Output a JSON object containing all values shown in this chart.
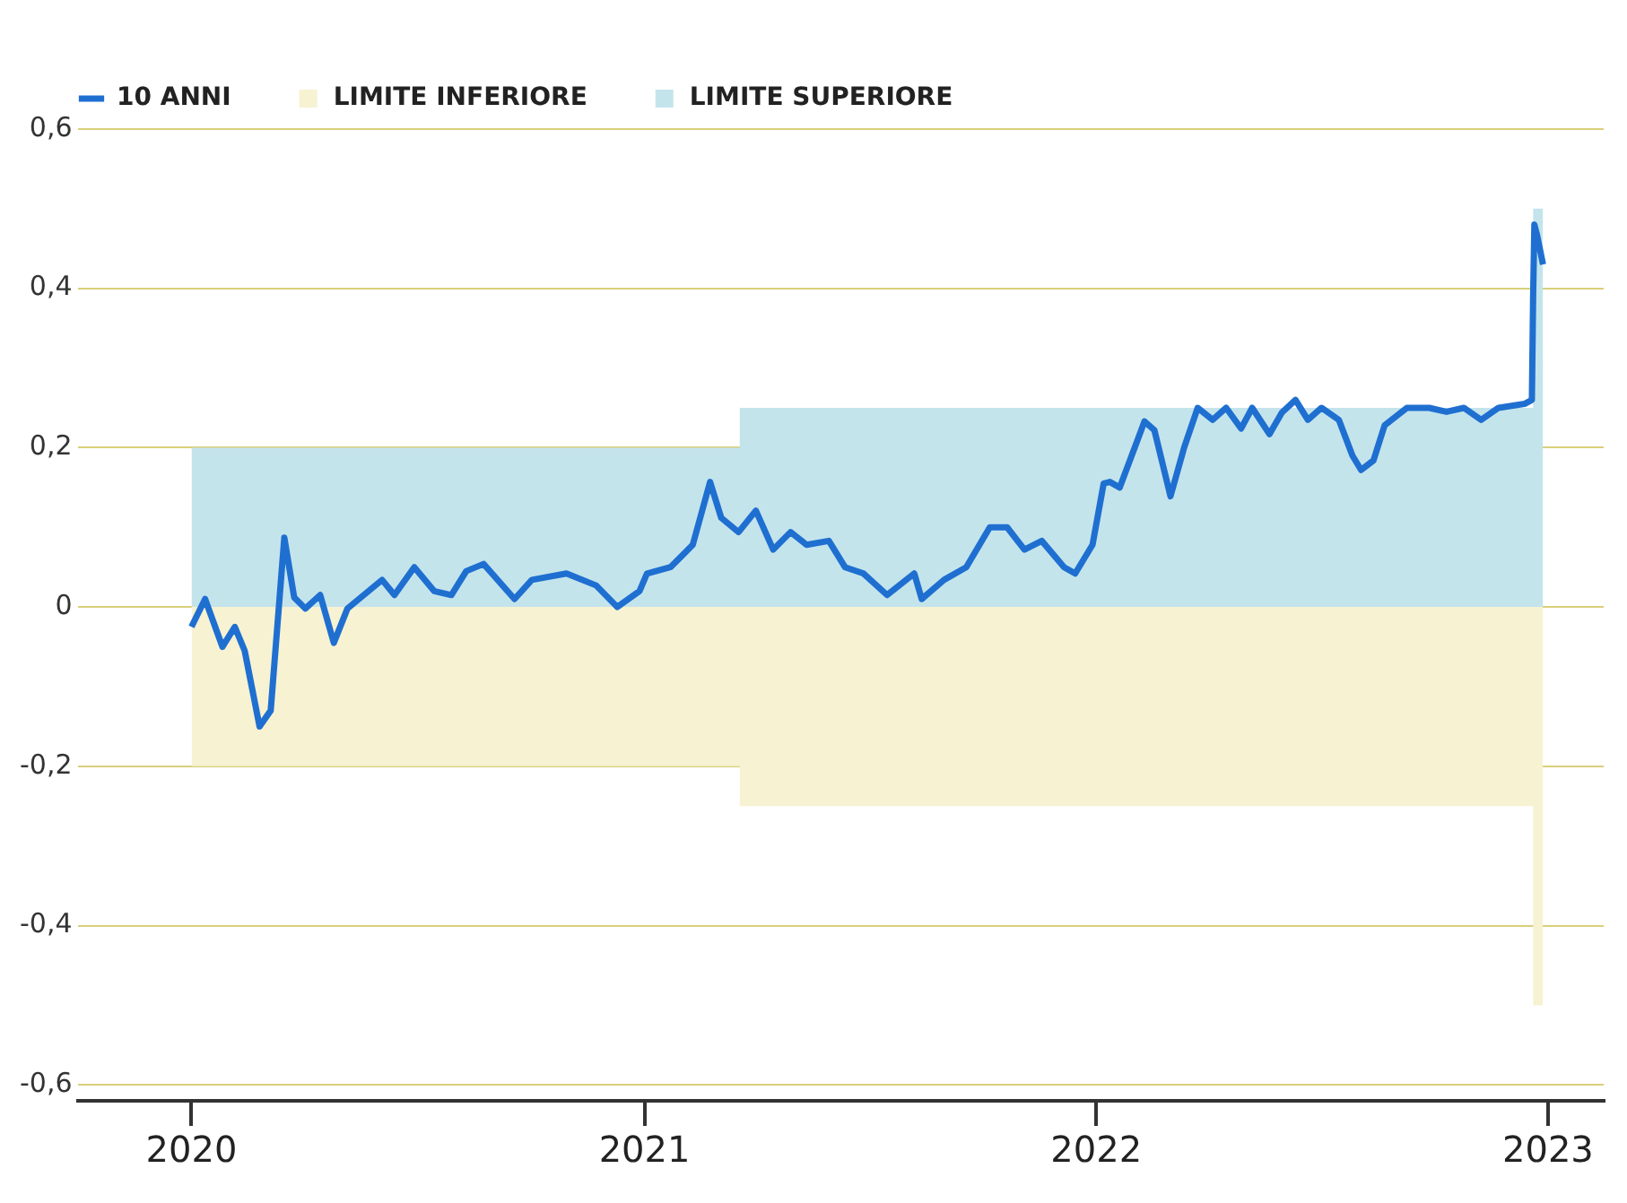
{
  "chart_data": {
    "type": "line",
    "xlim": [
      "2019-10-01",
      "2023-02-15"
    ],
    "xticks": [
      "2020",
      "2021",
      "2022",
      "2023"
    ],
    "ylim": [
      -0.62,
      0.6
    ],
    "yticks": [
      {
        "value": 0.6,
        "label": "0,6"
      },
      {
        "value": 0.4,
        "label": "0,4"
      },
      {
        "value": 0.2,
        "label": "0,2"
      },
      0,
      {
        "value": -0.2,
        "label": "-0,2"
      },
      {
        "value": -0.4,
        "label": "-0,4"
      },
      {
        "value": -0.6,
        "label": "-0,6"
      }
    ],
    "grid": "y",
    "legend": "top left",
    "series": [
      {
        "name": "10 ANNI",
        "color": "#1f6fd1",
        "x": [
          "2020-01-01",
          "2020-01-12",
          "2020-01-26",
          "2020-02-05",
          "2020-02-13",
          "2020-02-25",
          "2020-03-05",
          "2020-03-16",
          "2020-03-24",
          "2020-04-02",
          "2020-04-14",
          "2020-04-25",
          "2020-05-06",
          "2020-06-03",
          "2020-06-13",
          "2020-06-29",
          "2020-07-15",
          "2020-07-29",
          "2020-08-10",
          "2020-08-24",
          "2020-09-18",
          "2020-10-02",
          "2020-10-30",
          "2020-11-23",
          "2020-12-10",
          "2020-12-28",
          "2021-01-03",
          "2021-01-22",
          "2021-02-09",
          "2021-02-23",
          "2021-03-04",
          "2021-03-18",
          "2021-04-01",
          "2021-04-15",
          "2021-04-29",
          "2021-05-12",
          "2021-05-30",
          "2021-06-12",
          "2021-06-27",
          "2021-07-16",
          "2021-08-07",
          "2021-08-13",
          "2021-08-31",
          "2021-09-18",
          "2021-10-07",
          "2021-10-21",
          "2021-11-04",
          "2021-11-18",
          "2021-12-06",
          "2021-12-15",
          "2021-12-29",
          "2022-01-07",
          "2022-01-12",
          "2022-01-20",
          "2022-02-09",
          "2022-02-17",
          "2022-03-02",
          "2022-03-13",
          "2022-03-24",
          "2022-04-05",
          "2022-04-16",
          "2022-04-28",
          "2022-05-07",
          "2022-05-21",
          "2022-05-31",
          "2022-06-11",
          "2022-06-21",
          "2022-07-02",
          "2022-07-16",
          "2022-07-27",
          "2022-08-03",
          "2022-08-13",
          "2022-08-22",
          "2022-09-09",
          "2022-09-27",
          "2022-10-11",
          "2022-10-25",
          "2022-11-08",
          "2022-11-22",
          "2022-12-13",
          "2022-12-19",
          "2022-12-20",
          "2022-12-21",
          "2022-12-23",
          "2022-12-28"
        ],
        "values": [
          -0.025,
          0.01,
          -0.05,
          -0.025,
          -0.055,
          -0.15,
          -0.13,
          0.087,
          0.012,
          -0.002,
          0.015,
          -0.045,
          -0.002,
          0.034,
          0.015,
          0.05,
          0.02,
          0.015,
          0.045,
          0.054,
          0.01,
          0.034,
          0.042,
          0.027,
          0.0,
          0.02,
          0.042,
          0.05,
          0.078,
          0.157,
          0.112,
          0.094,
          0.121,
          0.072,
          0.094,
          0.078,
          0.083,
          0.05,
          0.042,
          0.015,
          0.042,
          0.01,
          0.034,
          0.05,
          0.1,
          0.1,
          0.072,
          0.083,
          0.05,
          0.042,
          0.078,
          0.155,
          0.157,
          0.15,
          0.233,
          0.222,
          0.139,
          0.2,
          0.25,
          0.235,
          0.25,
          0.224,
          0.25,
          0.217,
          0.244,
          0.26,
          0.235,
          0.25,
          0.235,
          0.19,
          0.172,
          0.184,
          0.228,
          0.25,
          0.25,
          0.245,
          0.25,
          0.235,
          0.25,
          0.255,
          0.26,
          0.39,
          0.48,
          0.468,
          0.43
        ]
      },
      {
        "name": "LIMITE INFERIORE",
        "type": "area",
        "color": "#f6f2d2",
        "x": [
          "2020-01-01",
          "2021-03-19",
          "2022-12-20",
          "2022-12-28"
        ],
        "values": [
          -0.2,
          -0.25,
          -0.5,
          -0.5
        ]
      },
      {
        "name": "LIMITE SUPERIORE",
        "type": "area",
        "color": "#c4e4ec",
        "x": [
          "2020-01-01",
          "2021-03-19",
          "2022-12-20",
          "2022-12-28"
        ],
        "values": [
          0.2,
          0.25,
          0.5,
          0.5
        ]
      }
    ]
  }
}
